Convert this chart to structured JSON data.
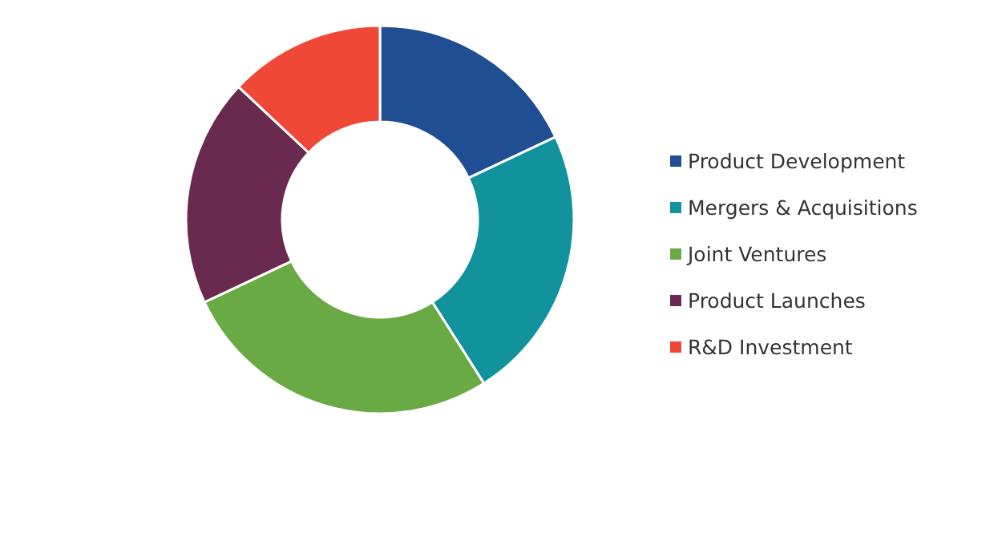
{
  "chart_data": {
    "type": "donut",
    "categories": [
      "Product Development",
      "Mergers & Acquisitions",
      "Joint Ventures",
      "Product Launches",
      "R&D Investment"
    ],
    "values": [
      18,
      23,
      27,
      19,
      13
    ],
    "colors": [
      "#1f4e92",
      "#12929c",
      "#6aaa45",
      "#6a2a4f",
      "#ef4836"
    ],
    "legend": "right"
  }
}
